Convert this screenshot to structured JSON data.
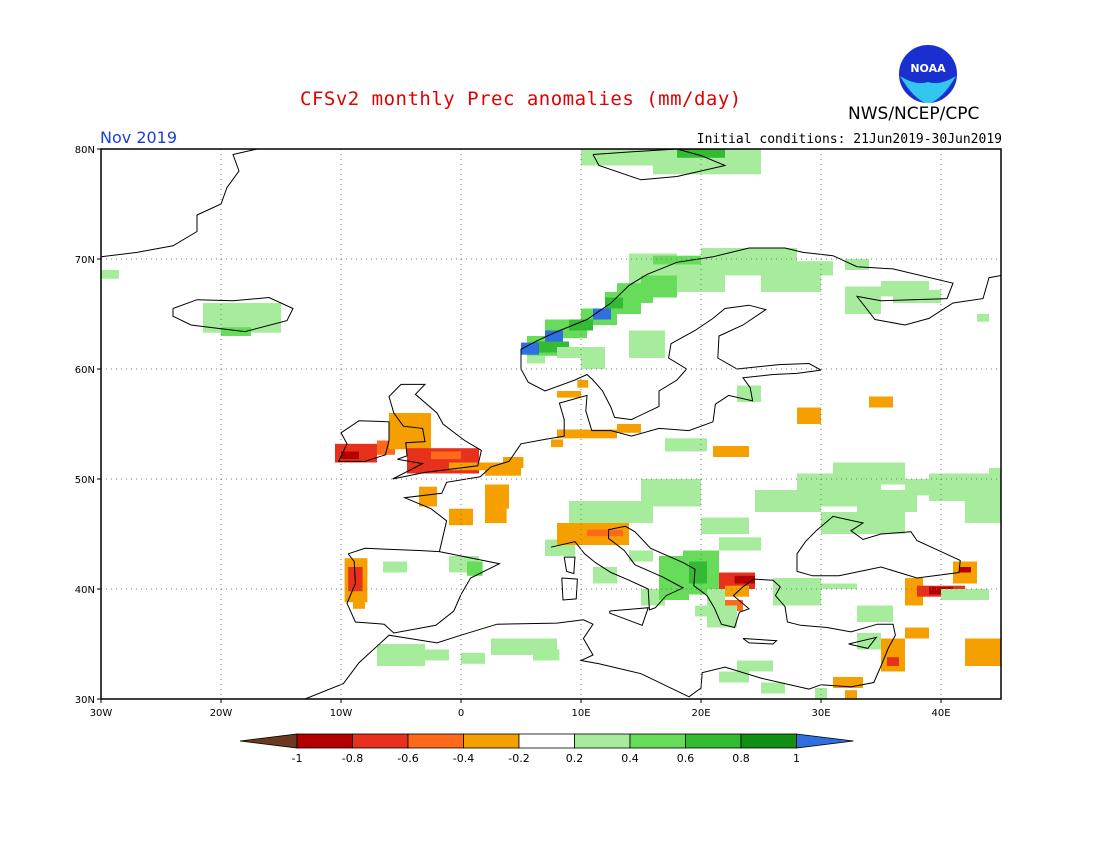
{
  "header": {
    "title": "CFSv2 monthly Prec anomalies (mm/day)",
    "period": "Nov 2019",
    "initial_conditions": "Initial conditions: 21Jun2019-30Jun2019",
    "agency": "NWS/NCEP/CPC",
    "logo_text": "NOAA"
  },
  "map": {
    "lon_range": [
      -30,
      45
    ],
    "lat_range": [
      30,
      80
    ],
    "lat_labels": [
      "30N",
      "40N",
      "50N",
      "60N",
      "70N",
      "80N"
    ],
    "lon_labels": [
      "30W",
      "20W",
      "10W",
      "0",
      "10E",
      "20E",
      "30E",
      "40E"
    ],
    "grid": "dotted"
  },
  "colorbar": {
    "labels": [
      "-1",
      "-0.8",
      "-0.6",
      "-0.4",
      "-0.2",
      "0.2",
      "0.4",
      "0.6",
      "0.8",
      "1"
    ],
    "colors": [
      "#6b3a1e",
      "#b40000",
      "#e8311c",
      "#ff6a1a",
      "#f5a000",
      "#ffffff",
      "#a6ec9c",
      "#66dc5a",
      "#33bb33",
      "#128e12",
      "#2f6fe0"
    ]
  }
}
